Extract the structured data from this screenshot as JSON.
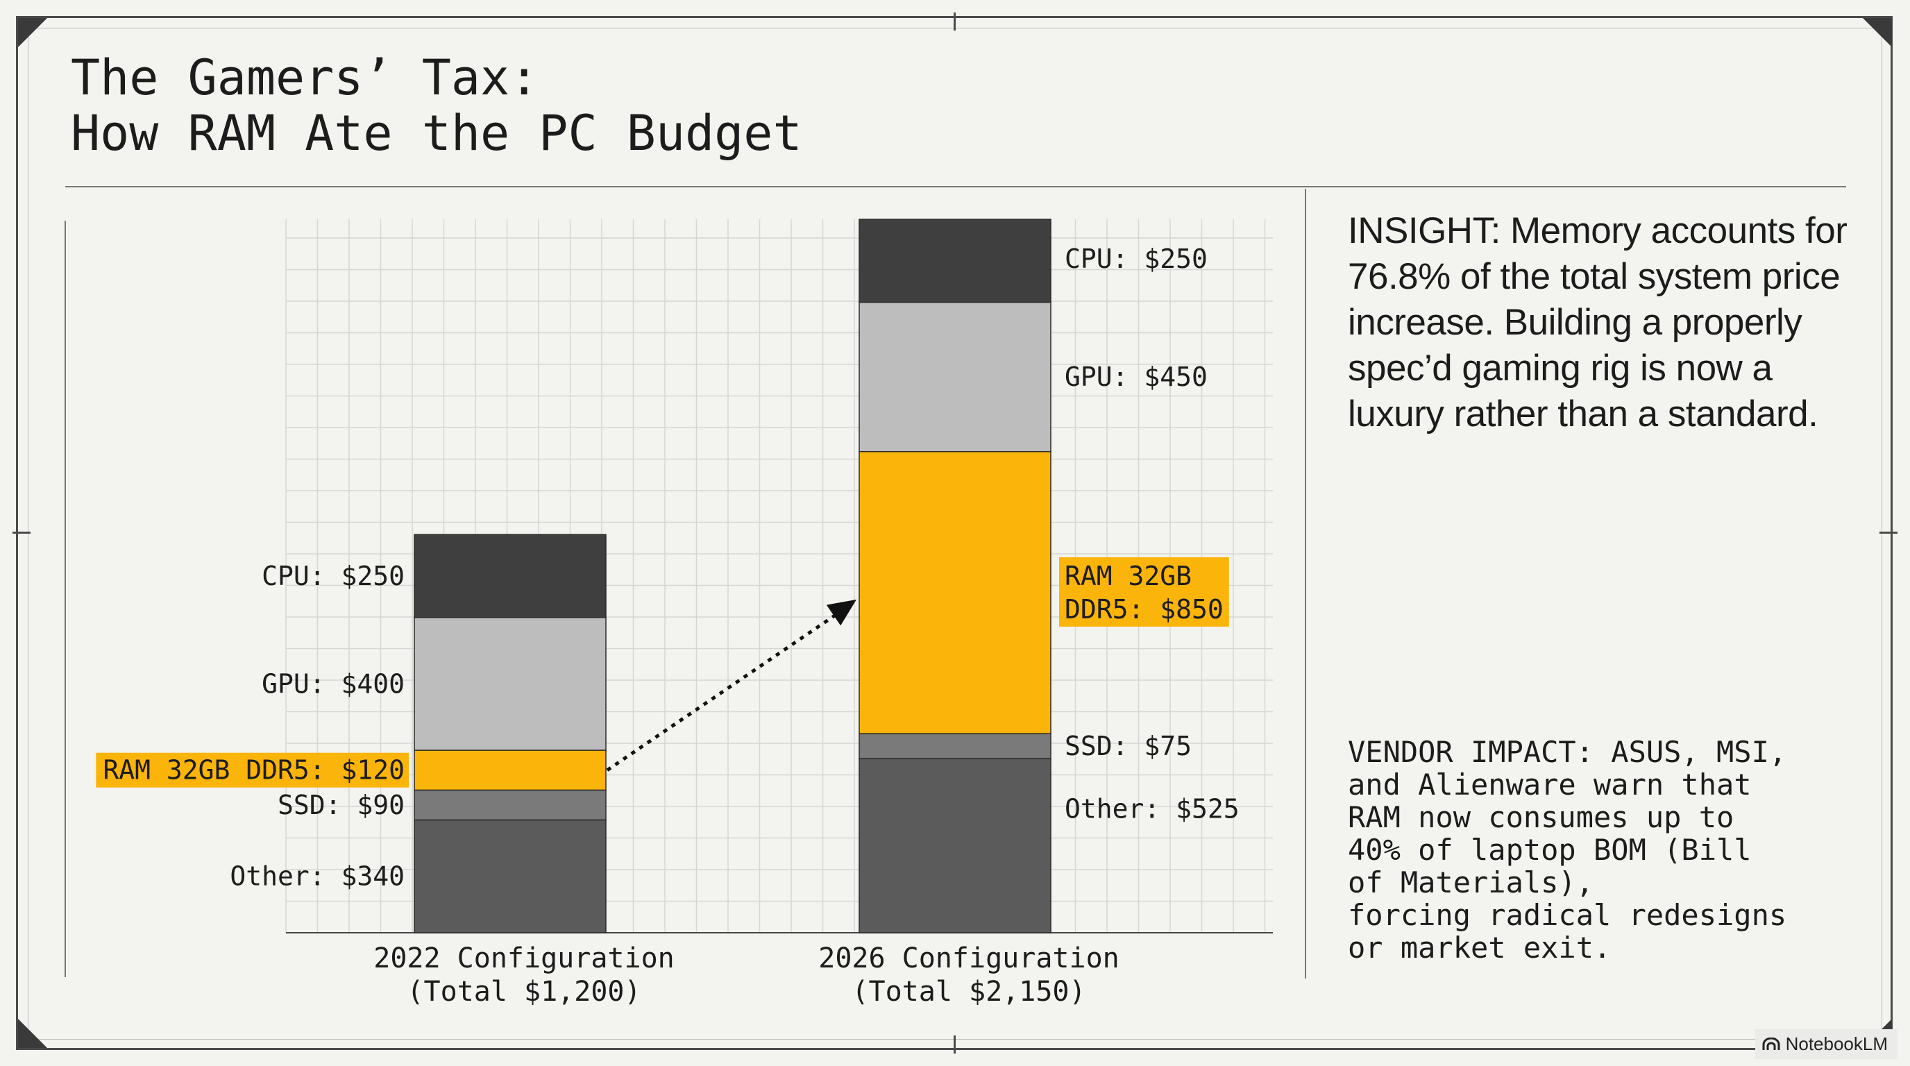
{
  "title_line1": "The Gamers’ Tax:",
  "title_line2": "How RAM Ate the PC Budget",
  "insight": "INSIGHT: Memory accounts for 76.8% of the total system price increase. Building a properly spec’d gaming rig is now a luxury rather than a standard.",
  "vendor_impact": "VENDOR IMPACT: ASUS, MSI,\nand Alienware warn that\nRAM now consumes up to\n40% of laptop BOM (Bill\nof Materials),\nforcing radical redesigns\nor market exit.",
  "badge": "NotebookLM",
  "colors": {
    "cpu": "#3f3f3f",
    "gpu": "#bdbdbd",
    "ram": "#fbb40a",
    "ssd": "#7a7a7a",
    "other": "#5b5b5b",
    "grid": "#d6d6d6",
    "background": "#f3f3ef"
  },
  "chart_data": {
    "type": "bar",
    "stacked": true,
    "categories": [
      "2022 Configuration\n(Total $1,200)",
      "2026 Configuration\n(Total $2,150)"
    ],
    "stack_order_bottom_to_top": [
      "Other",
      "SSD",
      "RAM 32GB DDR5",
      "GPU",
      "CPU"
    ],
    "series": [
      {
        "key": "other",
        "values": [
          340,
          525
        ],
        "labels": [
          "Other: $340",
          "Other: $525"
        ]
      },
      {
        "key": "ssd",
        "values": [
          90,
          75
        ],
        "labels": [
          "SSD: $90",
          "SSD: $75"
        ]
      },
      {
        "key": "ram",
        "values": [
          120,
          850
        ],
        "labels": [
          "RAM 32GB DDR5: $120",
          "RAM 32GB\nDDR5: $850"
        ]
      },
      {
        "key": "gpu",
        "values": [
          400,
          450
        ],
        "labels": [
          "GPU: $400",
          "GPU: $450"
        ]
      },
      {
        "key": "cpu",
        "values": [
          250,
          250
        ],
        "labels": [
          "CPU: $250",
          "CPU: $250"
        ]
      }
    ],
    "ylim": [
      0,
      2150
    ],
    "grid": true,
    "annotations": [
      "dotted arrow from 2022 RAM segment to 2026 RAM segment"
    ]
  }
}
